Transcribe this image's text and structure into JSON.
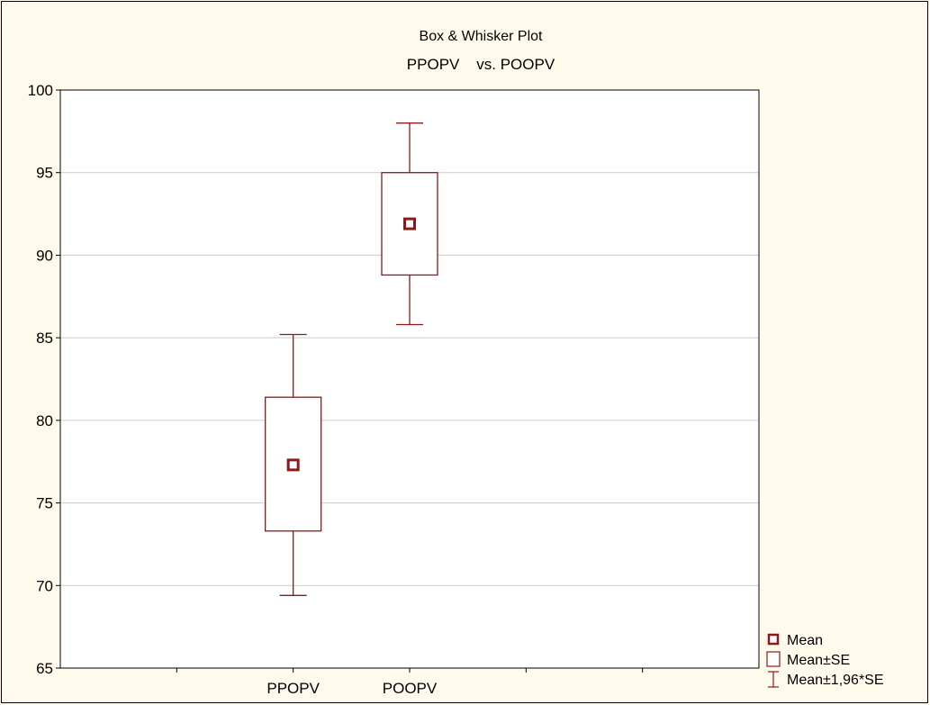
{
  "chart_data": {
    "type": "box",
    "title": "Box & Whisker Plot",
    "subtitle": "PPOPV    vs. POOPV",
    "xlabel": "",
    "ylabel": "",
    "ylim": [
      65,
      100
    ],
    "yticks": [
      65,
      70,
      75,
      80,
      85,
      90,
      95,
      100
    ],
    "grid": true,
    "legend_position": "bottom-right",
    "categories": [
      "PPOPV",
      "POOPV"
    ],
    "boxes": [
      {
        "category": "PPOPV",
        "mean": 77.3,
        "se_low": 73.3,
        "se_high": 81.4,
        "ci_low": 69.4,
        "ci_high": 85.2
      },
      {
        "category": "POOPV",
        "mean": 91.9,
        "se_low": 88.8,
        "se_high": 95.0,
        "ci_low": 85.8,
        "ci_high": 98.0
      }
    ],
    "legend": [
      {
        "symbol": "mean",
        "label": "Mean"
      },
      {
        "symbol": "box",
        "label": "Mean±SE"
      },
      {
        "symbol": "whisker",
        "label": "Mean±1,96*SE"
      }
    ],
    "colors": {
      "series": "#8b1a1a",
      "background": "#fffaeb",
      "plot": "#ffffff",
      "grid": "#cccccc"
    }
  }
}
